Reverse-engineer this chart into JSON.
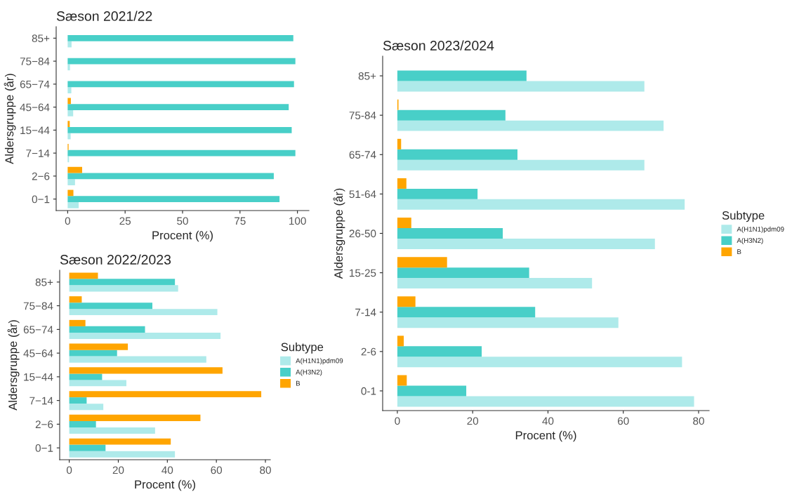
{
  "chart_data": [
    {
      "type": "bar",
      "orientation": "horizontal",
      "title": "Sæson 2021/22",
      "xlabel": "Procent (%)",
      "ylabel": "Aldersgruppe (år)",
      "categories": [
        "85+",
        "75−84",
        "65−74",
        "45−64",
        "15−44",
        "7−14",
        "2−6",
        "0−1"
      ],
      "xlim": [
        -5,
        105
      ],
      "xticks": [
        0,
        25,
        50,
        75,
        100
      ],
      "grid": false,
      "series": [
        {
          "color": "#aeeaea",
          "values": [
            1.7,
            1.0,
            1.6,
            2.4,
            1.3,
            0.6,
            3.2,
            4.8
          ]
        },
        {
          "color": "#48cfc8",
          "values": [
            98.2,
            99.1,
            98.5,
            96.2,
            97.5,
            99.1,
            89.7,
            92.2
          ]
        },
        {
          "color": "#ffa500",
          "values": [
            0,
            0,
            0,
            1.4,
            0.9,
            0.4,
            6.3,
            2.5
          ]
        }
      ]
    },
    {
      "type": "bar",
      "orientation": "horizontal",
      "title": "Sæson 2022/2023",
      "xlabel": "Procent (%)",
      "ylabel": "Aldersgruppe (år)",
      "legend_title": "Subtype",
      "legend": "right",
      "categories": [
        "85+",
        "75−84",
        "65−74",
        "45−64",
        "15−44",
        "7−14",
        "2−6",
        "0−1"
      ],
      "xlim": [
        -3.9,
        82
      ],
      "xticks": [
        0,
        20,
        40,
        60,
        80
      ],
      "grid": false,
      "series": [
        {
          "name": "A(H1N1)pdm09",
          "color": "#aeeaea",
          "values": [
            44.4,
            60.4,
            61.7,
            55.9,
            23.3,
            13.9,
            35.0,
            43.1
          ]
        },
        {
          "name": "A(H3N2)",
          "color": "#48cfc8",
          "values": [
            43.1,
            33.9,
            30.9,
            19.5,
            13.4,
            7.1,
            10.9,
            14.8
          ]
        },
        {
          "name": "B",
          "color": "#ffa500",
          "values": [
            11.7,
            5.1,
            6.6,
            23.9,
            62.5,
            78.3,
            53.5,
            41.4
          ]
        }
      ]
    },
    {
      "type": "bar",
      "orientation": "horizontal",
      "title": "Sæson 2023/2024",
      "xlabel": "Procent (%)",
      "ylabel": "Aldersgruppe (år)",
      "legend_title": "Subtype",
      "legend": "right",
      "categories": [
        "85+",
        "75-84",
        "65-74",
        "51-64",
        "26-50",
        "15-25",
        "7-14",
        "2-6",
        "0-1"
      ],
      "xlim": [
        -3.9,
        82.8
      ],
      "xticks": [
        0,
        20,
        40,
        60,
        80
      ],
      "grid": false,
      "series": [
        {
          "name": "A(H1N1)pdm09",
          "color": "#aeeaea",
          "values": [
            65.6,
            70.7,
            65.6,
            76.3,
            68.4,
            51.7,
            58.7,
            75.6,
            78.8
          ]
        },
        {
          "name": "A(H3N2)",
          "color": "#48cfc8",
          "values": [
            34.3,
            28.7,
            31.9,
            21.3,
            28.0,
            35.0,
            36.6,
            22.4,
            18.3
          ]
        },
        {
          "name": "B",
          "color": "#ffa500",
          "values": [
            0,
            0.3,
            1.0,
            2.4,
            3.7,
            13.2,
            4.8,
            1.7,
            2.5
          ]
        }
      ]
    }
  ]
}
